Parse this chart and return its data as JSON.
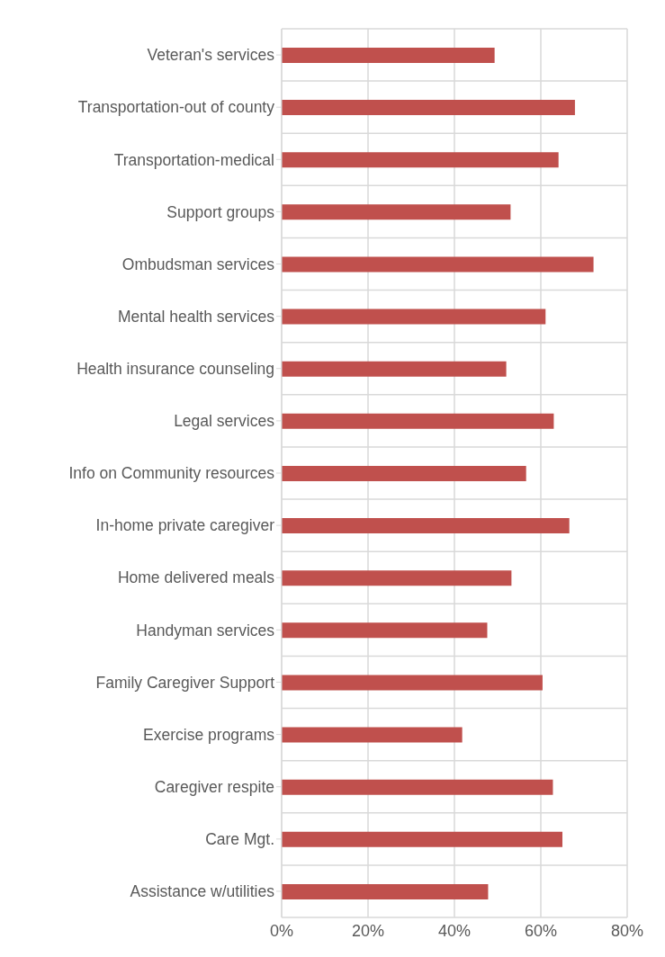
{
  "chart_data": {
    "type": "bar",
    "orientation": "horizontal",
    "categories": [
      "Veteran's services",
      "Transportation-out of county",
      "Transportation-medical",
      "Support groups",
      "Ombudsman services",
      "Mental health services",
      "Health insurance counseling",
      "Legal services",
      "Info on Community resources",
      "In-home private caregiver",
      "Home delivered meals",
      "Handyman services",
      "Family Caregiver Support",
      "Exercise programs",
      "Caregiver respite",
      "Care Mgt.",
      "Assistance w/utilities"
    ],
    "values": [
      49.3,
      67.9,
      64.1,
      53.0,
      72.2,
      61.1,
      52.0,
      63.0,
      56.6,
      66.6,
      53.2,
      47.6,
      60.4,
      41.8,
      62.8,
      65.0,
      47.8
    ],
    "color": "#c0504d",
    "xlim": [
      0,
      80
    ],
    "xticks": [
      {
        "value": 0,
        "label": "0%"
      },
      {
        "value": 20,
        "label": "20%"
      },
      {
        "value": 40,
        "label": "40%"
      },
      {
        "value": 60,
        "label": "60%"
      },
      {
        "value": 80,
        "label": "80%"
      }
    ],
    "grid": true
  }
}
